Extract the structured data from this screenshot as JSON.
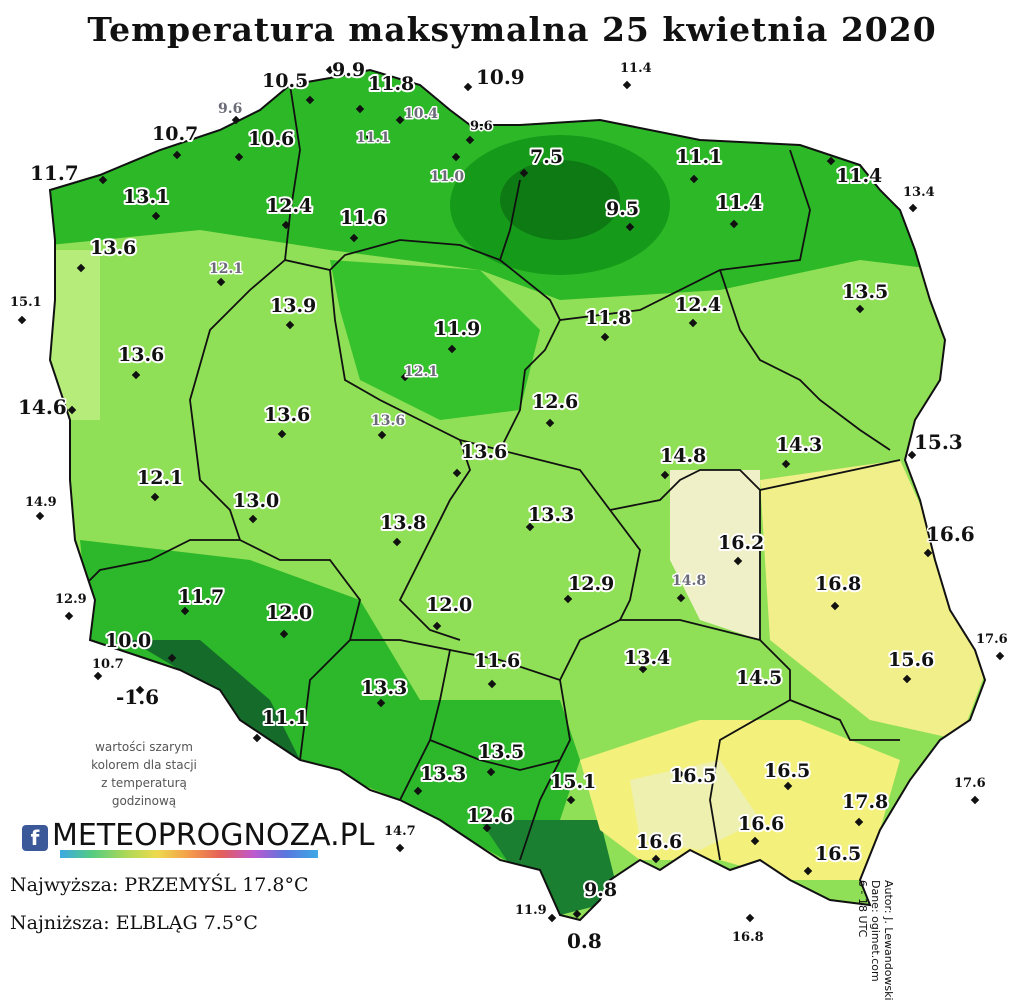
{
  "title": "Temperatura maksymalna 25 kwietnia 2020",
  "note_lines": [
    "wartości szarym",
    "kolorem dla stacji",
    "z temperaturą",
    "godzinową"
  ],
  "brand": {
    "fb": "f",
    "name": "METEOPROGNOZA.PL"
  },
  "stats": {
    "max": "Najwyższa: PRZEMYŚL 17.8°C",
    "min": "Najniższa: ELBLĄG 7.5°C"
  },
  "credits": {
    "author": "Autor: J. Lewandowski",
    "data": "Dane: ogimet.com",
    "hours": "6 - 18 UTC"
  },
  "colors": {
    "dark_green": "#1f9a1f",
    "green": "#3fc42a",
    "light_green": "#8fe056",
    "cream": "#f2f2c8",
    "yellow": "#f4f07a",
    "mountain": "#155c2e"
  },
  "stations": [
    {
      "v": "9.9",
      "style": "in"
    },
    {
      "v": "10.5",
      "style": "in"
    },
    {
      "v": "11.8",
      "style": "in"
    },
    {
      "v": "10.9",
      "style": "out"
    },
    {
      "v": "11.4",
      "style": "small"
    },
    {
      "v": "9.6",
      "style": "gray"
    },
    {
      "v": "10.4",
      "style": "gray"
    },
    {
      "v": "9.6",
      "style": "small"
    },
    {
      "v": "10.7",
      "style": "in"
    },
    {
      "v": "10.6",
      "style": "in"
    },
    {
      "v": "11.1",
      "style": "gray"
    },
    {
      "v": "7.5",
      "style": "in"
    },
    {
      "v": "11.1",
      "style": "in"
    },
    {
      "v": "11.0",
      "style": "gray"
    },
    {
      "v": "11.4",
      "style": "in"
    },
    {
      "v": "11.7",
      "style": "out"
    },
    {
      "v": "13.1",
      "style": "in"
    },
    {
      "v": "12.4",
      "style": "in"
    },
    {
      "v": "9.5",
      "style": "in"
    },
    {
      "v": "11.4",
      "style": "in"
    },
    {
      "v": "13.4",
      "style": "small"
    },
    {
      "v": "13.6",
      "style": "in"
    },
    {
      "v": "11.6",
      "style": "in"
    },
    {
      "v": "12.1",
      "style": "gray"
    },
    {
      "v": "15.1",
      "style": "small"
    },
    {
      "v": "13.9",
      "style": "in"
    },
    {
      "v": "13.5",
      "style": "in"
    },
    {
      "v": "11.8",
      "style": "in"
    },
    {
      "v": "12.4",
      "style": "in"
    },
    {
      "v": "11.9",
      "style": "in"
    },
    {
      "v": "13.6",
      "style": "in"
    },
    {
      "v": "12.1",
      "style": "gray"
    },
    {
      "v": "14.6",
      "style": "out"
    },
    {
      "v": "13.6",
      "style": "in"
    },
    {
      "v": "13.6",
      "style": "gray"
    },
    {
      "v": "12.6",
      "style": "in"
    },
    {
      "v": "15.3",
      "style": "out"
    },
    {
      "v": "13.6",
      "style": "in"
    },
    {
      "v": "14.8",
      "style": "in"
    },
    {
      "v": "14.3",
      "style": "in"
    },
    {
      "v": "12.1",
      "style": "in"
    },
    {
      "v": "14.9",
      "style": "small"
    },
    {
      "v": "13.0",
      "style": "in"
    },
    {
      "v": "13.3",
      "style": "in"
    },
    {
      "v": "13.8",
      "style": "in"
    },
    {
      "v": "16.6",
      "style": "out"
    },
    {
      "v": "16.2",
      "style": "in"
    },
    {
      "v": "16.8",
      "style": "in"
    },
    {
      "v": "12.9",
      "style": "in"
    },
    {
      "v": "14.8",
      "style": "gray"
    },
    {
      "v": "12.9",
      "style": "small"
    },
    {
      "v": "11.7",
      "style": "in"
    },
    {
      "v": "12.0",
      "style": "in"
    },
    {
      "v": "12.0",
      "style": "in"
    },
    {
      "v": "10.0",
      "style": "in"
    },
    {
      "v": "17.6",
      "style": "small"
    },
    {
      "v": "11.6",
      "style": "in"
    },
    {
      "v": "13.4",
      "style": "in"
    },
    {
      "v": "15.6",
      "style": "in"
    },
    {
      "v": "10.7",
      "style": "small"
    },
    {
      "v": "14.5",
      "style": "in"
    },
    {
      "v": "-1.6",
      "style": "out"
    },
    {
      "v": "13.3",
      "style": "in"
    },
    {
      "v": "11.1",
      "style": "in"
    },
    {
      "v": "13.5",
      "style": "in"
    },
    {
      "v": "16.5",
      "style": "in"
    },
    {
      "v": "16.5",
      "style": "in"
    },
    {
      "v": "13.3",
      "style": "in"
    },
    {
      "v": "15.1",
      "style": "in"
    },
    {
      "v": "17.6",
      "style": "small"
    },
    {
      "v": "17.8",
      "style": "in"
    },
    {
      "v": "12.6",
      "style": "in"
    },
    {
      "v": "14.7",
      "style": "small"
    },
    {
      "v": "16.6",
      "style": "in"
    },
    {
      "v": "16.6",
      "style": "in"
    },
    {
      "v": "16.5",
      "style": "in"
    },
    {
      "v": "9.8",
      "style": "in"
    },
    {
      "v": "11.9",
      "style": "small"
    },
    {
      "v": "0.8",
      "style": "out"
    },
    {
      "v": "16.8",
      "style": "small"
    }
  ]
}
